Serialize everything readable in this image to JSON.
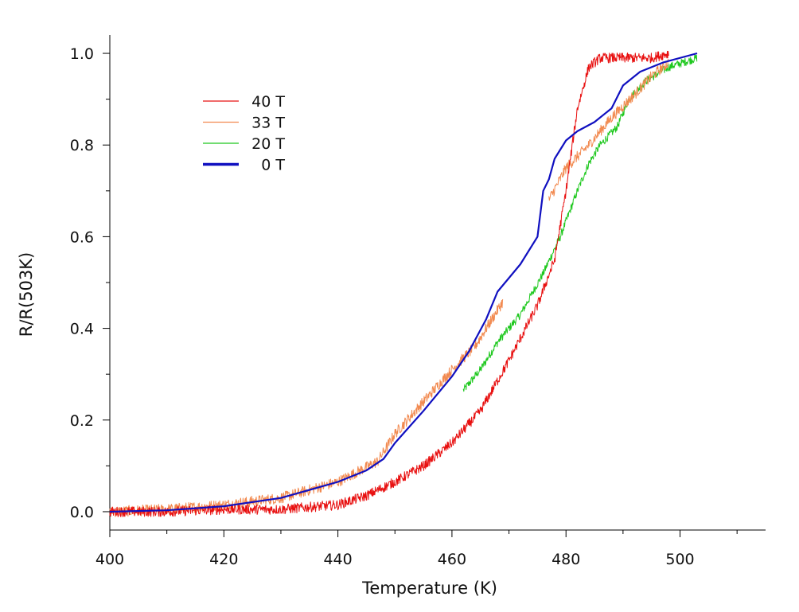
{
  "chart_data": {
    "type": "line",
    "xlabel": "Temperature (K)",
    "ylabel": "R/R(503K)",
    "xlim": [
      400,
      515
    ],
    "ylim": [
      -0.04,
      1.04
    ],
    "xticks": [
      400,
      420,
      440,
      460,
      480,
      500
    ],
    "xtick_labels": [
      "400",
      "420",
      "440",
      "460",
      "480",
      "500"
    ],
    "yticks": [
      0.0,
      0.2,
      0.4,
      0.6,
      0.8,
      1.0
    ],
    "ytick_labels": [
      "0.0",
      "0.2",
      "0.4",
      "0.6",
      "0.8",
      "1.0"
    ],
    "grid": false,
    "legend_position": "top-left",
    "series": [
      {
        "name": "40 T",
        "color": "#e81010",
        "noise": 0.011,
        "points": [
          [
            400,
            0.0
          ],
          [
            410,
            0.0
          ],
          [
            420,
            0.005
          ],
          [
            430,
            0.005
          ],
          [
            440,
            0.015
          ],
          [
            445,
            0.035
          ],
          [
            450,
            0.065
          ],
          [
            455,
            0.1
          ],
          [
            460,
            0.15
          ],
          [
            465,
            0.22
          ],
          [
            470,
            0.33
          ],
          [
            475,
            0.45
          ],
          [
            478,
            0.55
          ],
          [
            480,
            0.7
          ],
          [
            482,
            0.88
          ],
          [
            484,
            0.97
          ],
          [
            486,
            0.99
          ],
          [
            490,
            0.99
          ],
          [
            495,
            0.99
          ],
          [
            498,
            1.0
          ]
        ]
      },
      {
        "name": "33 T",
        "color": "#f28a50",
        "noise": 0.012,
        "segments": [
          [
            [
              400,
              0.0
            ],
            [
              410,
              0.005
            ],
            [
              420,
              0.015
            ],
            [
              430,
              0.03
            ],
            [
              440,
              0.065
            ],
            [
              447,
              0.11
            ],
            [
              450,
              0.17
            ],
            [
              455,
              0.24
            ],
            [
              460,
              0.31
            ],
            [
              464,
              0.36
            ],
            [
              467,
              0.42
            ],
            [
              469,
              0.46
            ]
          ],
          [
            [
              477,
              0.68
            ],
            [
              480,
              0.75
            ],
            [
              484,
              0.8
            ],
            [
              488,
              0.86
            ],
            [
              492,
              0.91
            ],
            [
              495,
              0.95
            ],
            [
              498,
              0.98
            ]
          ]
        ]
      },
      {
        "name": "20 T",
        "color": "#1ec81e",
        "noise": 0.009,
        "segments": [
          [
            [
              462,
              0.265
            ],
            [
              465,
              0.31
            ],
            [
              468,
              0.37
            ],
            [
              472,
              0.43
            ],
            [
              476,
              0.52
            ],
            [
              479,
              0.6
            ],
            [
              482,
              0.7
            ],
            [
              484,
              0.76
            ],
            [
              486,
              0.8
            ],
            [
              489,
              0.84
            ],
            [
              491,
              0.9
            ],
            [
              494,
              0.94
            ],
            [
              498,
              0.97
            ],
            [
              503,
              0.99
            ]
          ]
        ]
      },
      {
        "name": "0 T",
        "color": "#1010c0",
        "noise": 0.0,
        "points": [
          [
            400,
            0.0
          ],
          [
            410,
            0.003
          ],
          [
            420,
            0.012
          ],
          [
            430,
            0.03
          ],
          [
            440,
            0.065
          ],
          [
            445,
            0.09
          ],
          [
            448,
            0.115
          ],
          [
            450,
            0.15
          ],
          [
            455,
            0.22
          ],
          [
            460,
            0.295
          ],
          [
            463,
            0.35
          ],
          [
            466,
            0.42
          ],
          [
            468,
            0.48
          ],
          [
            472,
            0.54
          ],
          [
            475,
            0.6
          ],
          [
            476,
            0.7
          ],
          [
            477,
            0.725
          ],
          [
            478,
            0.77
          ],
          [
            480,
            0.81
          ],
          [
            482,
            0.83
          ],
          [
            485,
            0.85
          ],
          [
            488,
            0.88
          ],
          [
            490,
            0.93
          ],
          [
            493,
            0.96
          ],
          [
            497,
            0.98
          ],
          [
            503,
            1.0
          ]
        ]
      }
    ]
  }
}
